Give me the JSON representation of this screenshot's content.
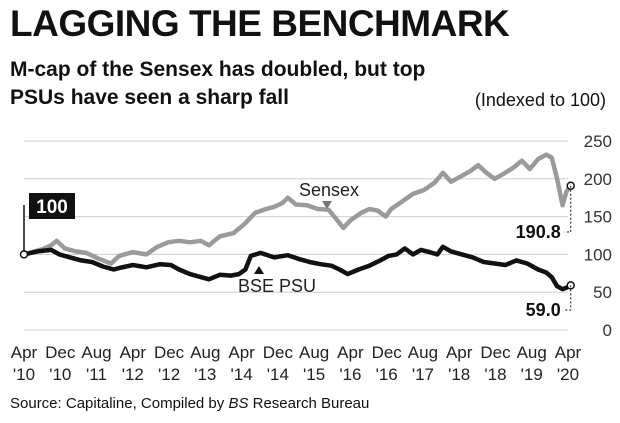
{
  "title": "LAGGING THE BENCHMARK",
  "subtitle": "M-cap of the Sensex has doubled, but top PSUs have seen a sharp fall",
  "note": "(Indexed to 100)",
  "source_prefix": "Source: Capitaline, Compiled by ",
  "source_italic": "BS",
  "source_suffix": " Research Bureau",
  "colors": {
    "sensex": "#9a9a9a",
    "psu": "#111111",
    "grid": "#cfcfcf"
  },
  "chart_data": {
    "type": "line",
    "title": "LAGGING THE BENCHMARK",
    "ylabel": "Indexed to 100",
    "ylim": [
      0,
      250
    ],
    "yticks": [
      0,
      50,
      100,
      150,
      200,
      250
    ],
    "x_range": [
      2010.25,
      2020.25
    ],
    "x_ticks": [
      {
        "label": "Apr",
        "year": "'10",
        "t": 2010.25
      },
      {
        "label": "Dec",
        "year": "'10",
        "t": 2010.917
      },
      {
        "label": "Aug",
        "year": "'11",
        "t": 2011.583
      },
      {
        "label": "Apr",
        "year": "'12",
        "t": 2012.25
      },
      {
        "label": "Dec",
        "year": "'12",
        "t": 2012.917
      },
      {
        "label": "Aug",
        "year": "'13",
        "t": 2013.583
      },
      {
        "label": "Apr",
        "year": "'14",
        "t": 2014.25
      },
      {
        "label": "Dec",
        "year": "'14",
        "t": 2014.917
      },
      {
        "label": "Aug",
        "year": "'15",
        "t": 2015.583
      },
      {
        "label": "Apr",
        "year": "'16",
        "t": 2016.25
      },
      {
        "label": "Dec",
        "year": "'16",
        "t": 2016.917
      },
      {
        "label": "Aug",
        "year": "'17",
        "t": 2017.583
      },
      {
        "label": "Apr",
        "year": "'18",
        "t": 2018.25
      },
      {
        "label": "Dec",
        "year": "'18",
        "t": 2018.917
      },
      {
        "label": "Aug",
        "year": "'19",
        "t": 2019.583
      },
      {
        "label": "Apr",
        "year": "'20",
        "t": 2020.25
      }
    ],
    "start_label": "100",
    "series": [
      {
        "name": "Sensex",
        "end_label": "190.8",
        "points": [
          [
            2010.25,
            100
          ],
          [
            2010.4,
            103
          ],
          [
            2010.6,
            107
          ],
          [
            2010.75,
            112
          ],
          [
            2010.85,
            118
          ],
          [
            2011.0,
            108
          ],
          [
            2011.2,
            104
          ],
          [
            2011.4,
            102
          ],
          [
            2011.6,
            95
          ],
          [
            2011.85,
            88
          ],
          [
            2012.0,
            98
          ],
          [
            2012.25,
            103
          ],
          [
            2012.5,
            100
          ],
          [
            2012.7,
            110
          ],
          [
            2012.9,
            116
          ],
          [
            2013.1,
            118
          ],
          [
            2013.3,
            116
          ],
          [
            2013.5,
            118
          ],
          [
            2013.65,
            112
          ],
          [
            2013.85,
            124
          ],
          [
            2014.1,
            128
          ],
          [
            2014.3,
            140
          ],
          [
            2014.5,
            155
          ],
          [
            2014.7,
            160
          ],
          [
            2014.85,
            163
          ],
          [
            2015.0,
            168
          ],
          [
            2015.1,
            175
          ],
          [
            2015.25,
            166
          ],
          [
            2015.45,
            165
          ],
          [
            2015.65,
            160
          ],
          [
            2015.85,
            159
          ],
          [
            2016.0,
            146
          ],
          [
            2016.12,
            135
          ],
          [
            2016.25,
            145
          ],
          [
            2016.45,
            155
          ],
          [
            2016.6,
            160
          ],
          [
            2016.75,
            158
          ],
          [
            2016.9,
            150
          ],
          [
            2017.0,
            160
          ],
          [
            2017.2,
            170
          ],
          [
            2017.4,
            180
          ],
          [
            2017.6,
            185
          ],
          [
            2017.8,
            195
          ],
          [
            2017.95,
            208
          ],
          [
            2018.1,
            196
          ],
          [
            2018.25,
            202
          ],
          [
            2018.45,
            210
          ],
          [
            2018.6,
            218
          ],
          [
            2018.75,
            208
          ],
          [
            2018.9,
            200
          ],
          [
            2019.05,
            206
          ],
          [
            2019.25,
            215
          ],
          [
            2019.4,
            224
          ],
          [
            2019.55,
            213
          ],
          [
            2019.7,
            226
          ],
          [
            2019.85,
            232
          ],
          [
            2019.95,
            228
          ],
          [
            2020.05,
            200
          ],
          [
            2020.15,
            165
          ],
          [
            2020.22,
            183
          ],
          [
            2020.3,
            190.8
          ]
        ]
      },
      {
        "name": "BSE PSU",
        "end_label": "59.0",
        "points": [
          [
            2010.25,
            100
          ],
          [
            2010.5,
            104
          ],
          [
            2010.75,
            106
          ],
          [
            2010.9,
            100
          ],
          [
            2011.1,
            96
          ],
          [
            2011.3,
            92
          ],
          [
            2011.5,
            90
          ],
          [
            2011.7,
            84
          ],
          [
            2011.9,
            80
          ],
          [
            2012.0,
            82
          ],
          [
            2012.25,
            86
          ],
          [
            2012.5,
            83
          ],
          [
            2012.75,
            87
          ],
          [
            2012.95,
            86
          ],
          [
            2013.1,
            80
          ],
          [
            2013.3,
            74
          ],
          [
            2013.5,
            70
          ],
          [
            2013.65,
            67
          ],
          [
            2013.85,
            73
          ],
          [
            2014.05,
            72
          ],
          [
            2014.2,
            74
          ],
          [
            2014.32,
            80
          ],
          [
            2014.42,
            98
          ],
          [
            2014.6,
            102
          ],
          [
            2014.85,
            96
          ],
          [
            2015.1,
            99
          ],
          [
            2015.3,
            94
          ],
          [
            2015.5,
            90
          ],
          [
            2015.7,
            87
          ],
          [
            2015.9,
            85
          ],
          [
            2016.05,
            80
          ],
          [
            2016.2,
            74
          ],
          [
            2016.4,
            80
          ],
          [
            2016.6,
            85
          ],
          [
            2016.8,
            92
          ],
          [
            2016.95,
            98
          ],
          [
            2017.1,
            100
          ],
          [
            2017.25,
            108
          ],
          [
            2017.4,
            100
          ],
          [
            2017.55,
            106
          ],
          [
            2017.7,
            103
          ],
          [
            2017.85,
            100
          ],
          [
            2017.95,
            110
          ],
          [
            2018.1,
            104
          ],
          [
            2018.3,
            100
          ],
          [
            2018.5,
            96
          ],
          [
            2018.7,
            90
          ],
          [
            2018.9,
            88
          ],
          [
            2019.1,
            86
          ],
          [
            2019.3,
            92
          ],
          [
            2019.5,
            88
          ],
          [
            2019.7,
            80
          ],
          [
            2019.85,
            76
          ],
          [
            2019.95,
            70
          ],
          [
            2020.05,
            58
          ],
          [
            2020.15,
            54
          ],
          [
            2020.22,
            56
          ],
          [
            2020.3,
            59.0
          ]
        ]
      }
    ]
  }
}
